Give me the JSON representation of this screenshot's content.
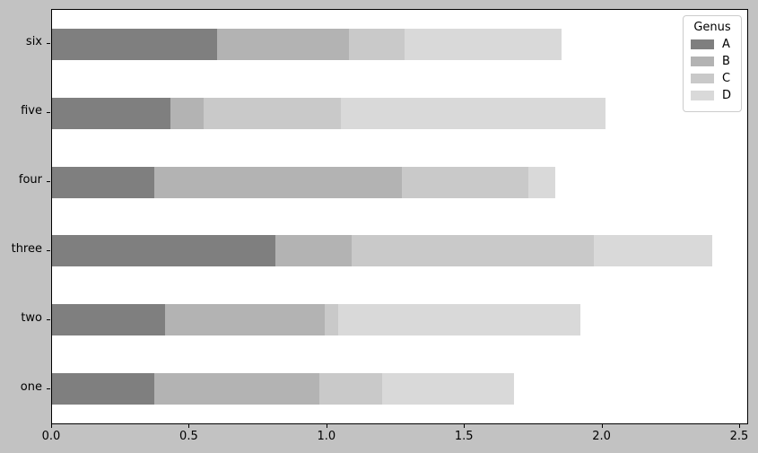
{
  "figure": {
    "background_color": "#c2c2c2",
    "plot_background_color": "#ffffff",
    "spine_color": "#000000"
  },
  "chart_data": {
    "type": "bar",
    "orientation": "horizontal",
    "stacked": true,
    "title": "",
    "xlabel": "",
    "ylabel": "",
    "grid": false,
    "xlim": [
      0.0,
      2.5
    ],
    "xticks": [
      "0.0",
      "0.5",
      "1.0",
      "1.5",
      "2.0",
      "2.5"
    ],
    "categories": [
      "one",
      "two",
      "three",
      "four",
      "five",
      "six"
    ],
    "series": [
      {
        "name": "A",
        "color": "#7f7f7f",
        "values": [
          0.37,
          0.41,
          0.81,
          0.37,
          0.43,
          0.6
        ]
      },
      {
        "name": "B",
        "color": "#b3b3b3",
        "values": [
          0.6,
          0.58,
          0.28,
          0.9,
          0.12,
          0.48
        ]
      },
      {
        "name": "C",
        "color": "#c9c9c9",
        "values": [
          0.23,
          0.05,
          0.88,
          0.46,
          0.5,
          0.2
        ]
      },
      {
        "name": "D",
        "color": "#d9d9d9",
        "values": [
          0.48,
          0.88,
          0.43,
          0.1,
          0.96,
          0.57
        ]
      }
    ],
    "totals": [
      1.68,
      1.92,
      2.4,
      1.83,
      2.01,
      1.85
    ],
    "legend": {
      "title": "Genus",
      "entries": [
        "A",
        "B",
        "C",
        "D"
      ],
      "position": "upper right"
    }
  }
}
